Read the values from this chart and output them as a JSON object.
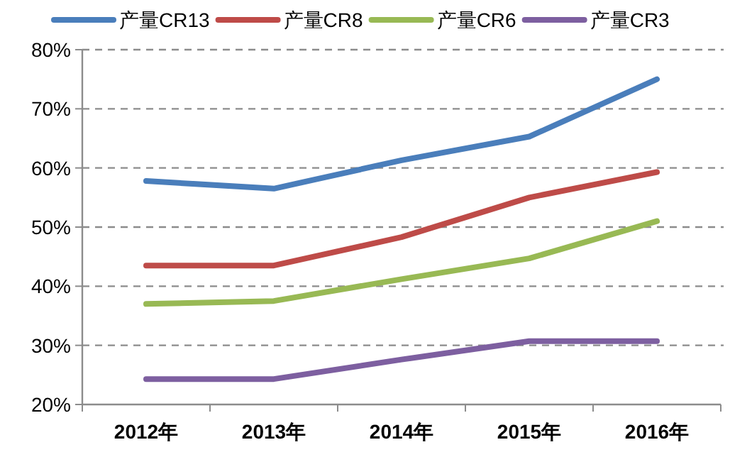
{
  "chart_data": {
    "type": "line",
    "categories": [
      "2012年",
      "2013年",
      "2014年",
      "2015年",
      "2016年"
    ],
    "series": [
      {
        "name": "产量CR13",
        "color": "#4a7ebb",
        "values": [
          57.8,
          56.5,
          61.3,
          65.3,
          75.0
        ]
      },
      {
        "name": "产量CR8",
        "color": "#be4b48",
        "values": [
          43.5,
          43.5,
          48.3,
          55.0,
          59.3
        ]
      },
      {
        "name": "产量CR6",
        "color": "#98b954",
        "values": [
          37.0,
          37.5,
          41.2,
          44.7,
          51.0
        ]
      },
      {
        "name": "产量CR3",
        "color": "#7d5fa0",
        "values": [
          24.3,
          24.3,
          27.6,
          30.7,
          30.7
        ]
      }
    ],
    "ylim": [
      20,
      80
    ],
    "yticks": [
      {
        "value": 20,
        "label": "20%"
      },
      {
        "value": 30,
        "label": "30%"
      },
      {
        "value": 40,
        "label": "40%"
      },
      {
        "value": 50,
        "label": "50%"
      },
      {
        "value": 60,
        "label": "60%"
      },
      {
        "value": 70,
        "label": "70%"
      },
      {
        "value": 80,
        "label": "80%"
      }
    ],
    "grid": "y",
    "legend": "top",
    "marker": "none",
    "line_style": "solid"
  }
}
